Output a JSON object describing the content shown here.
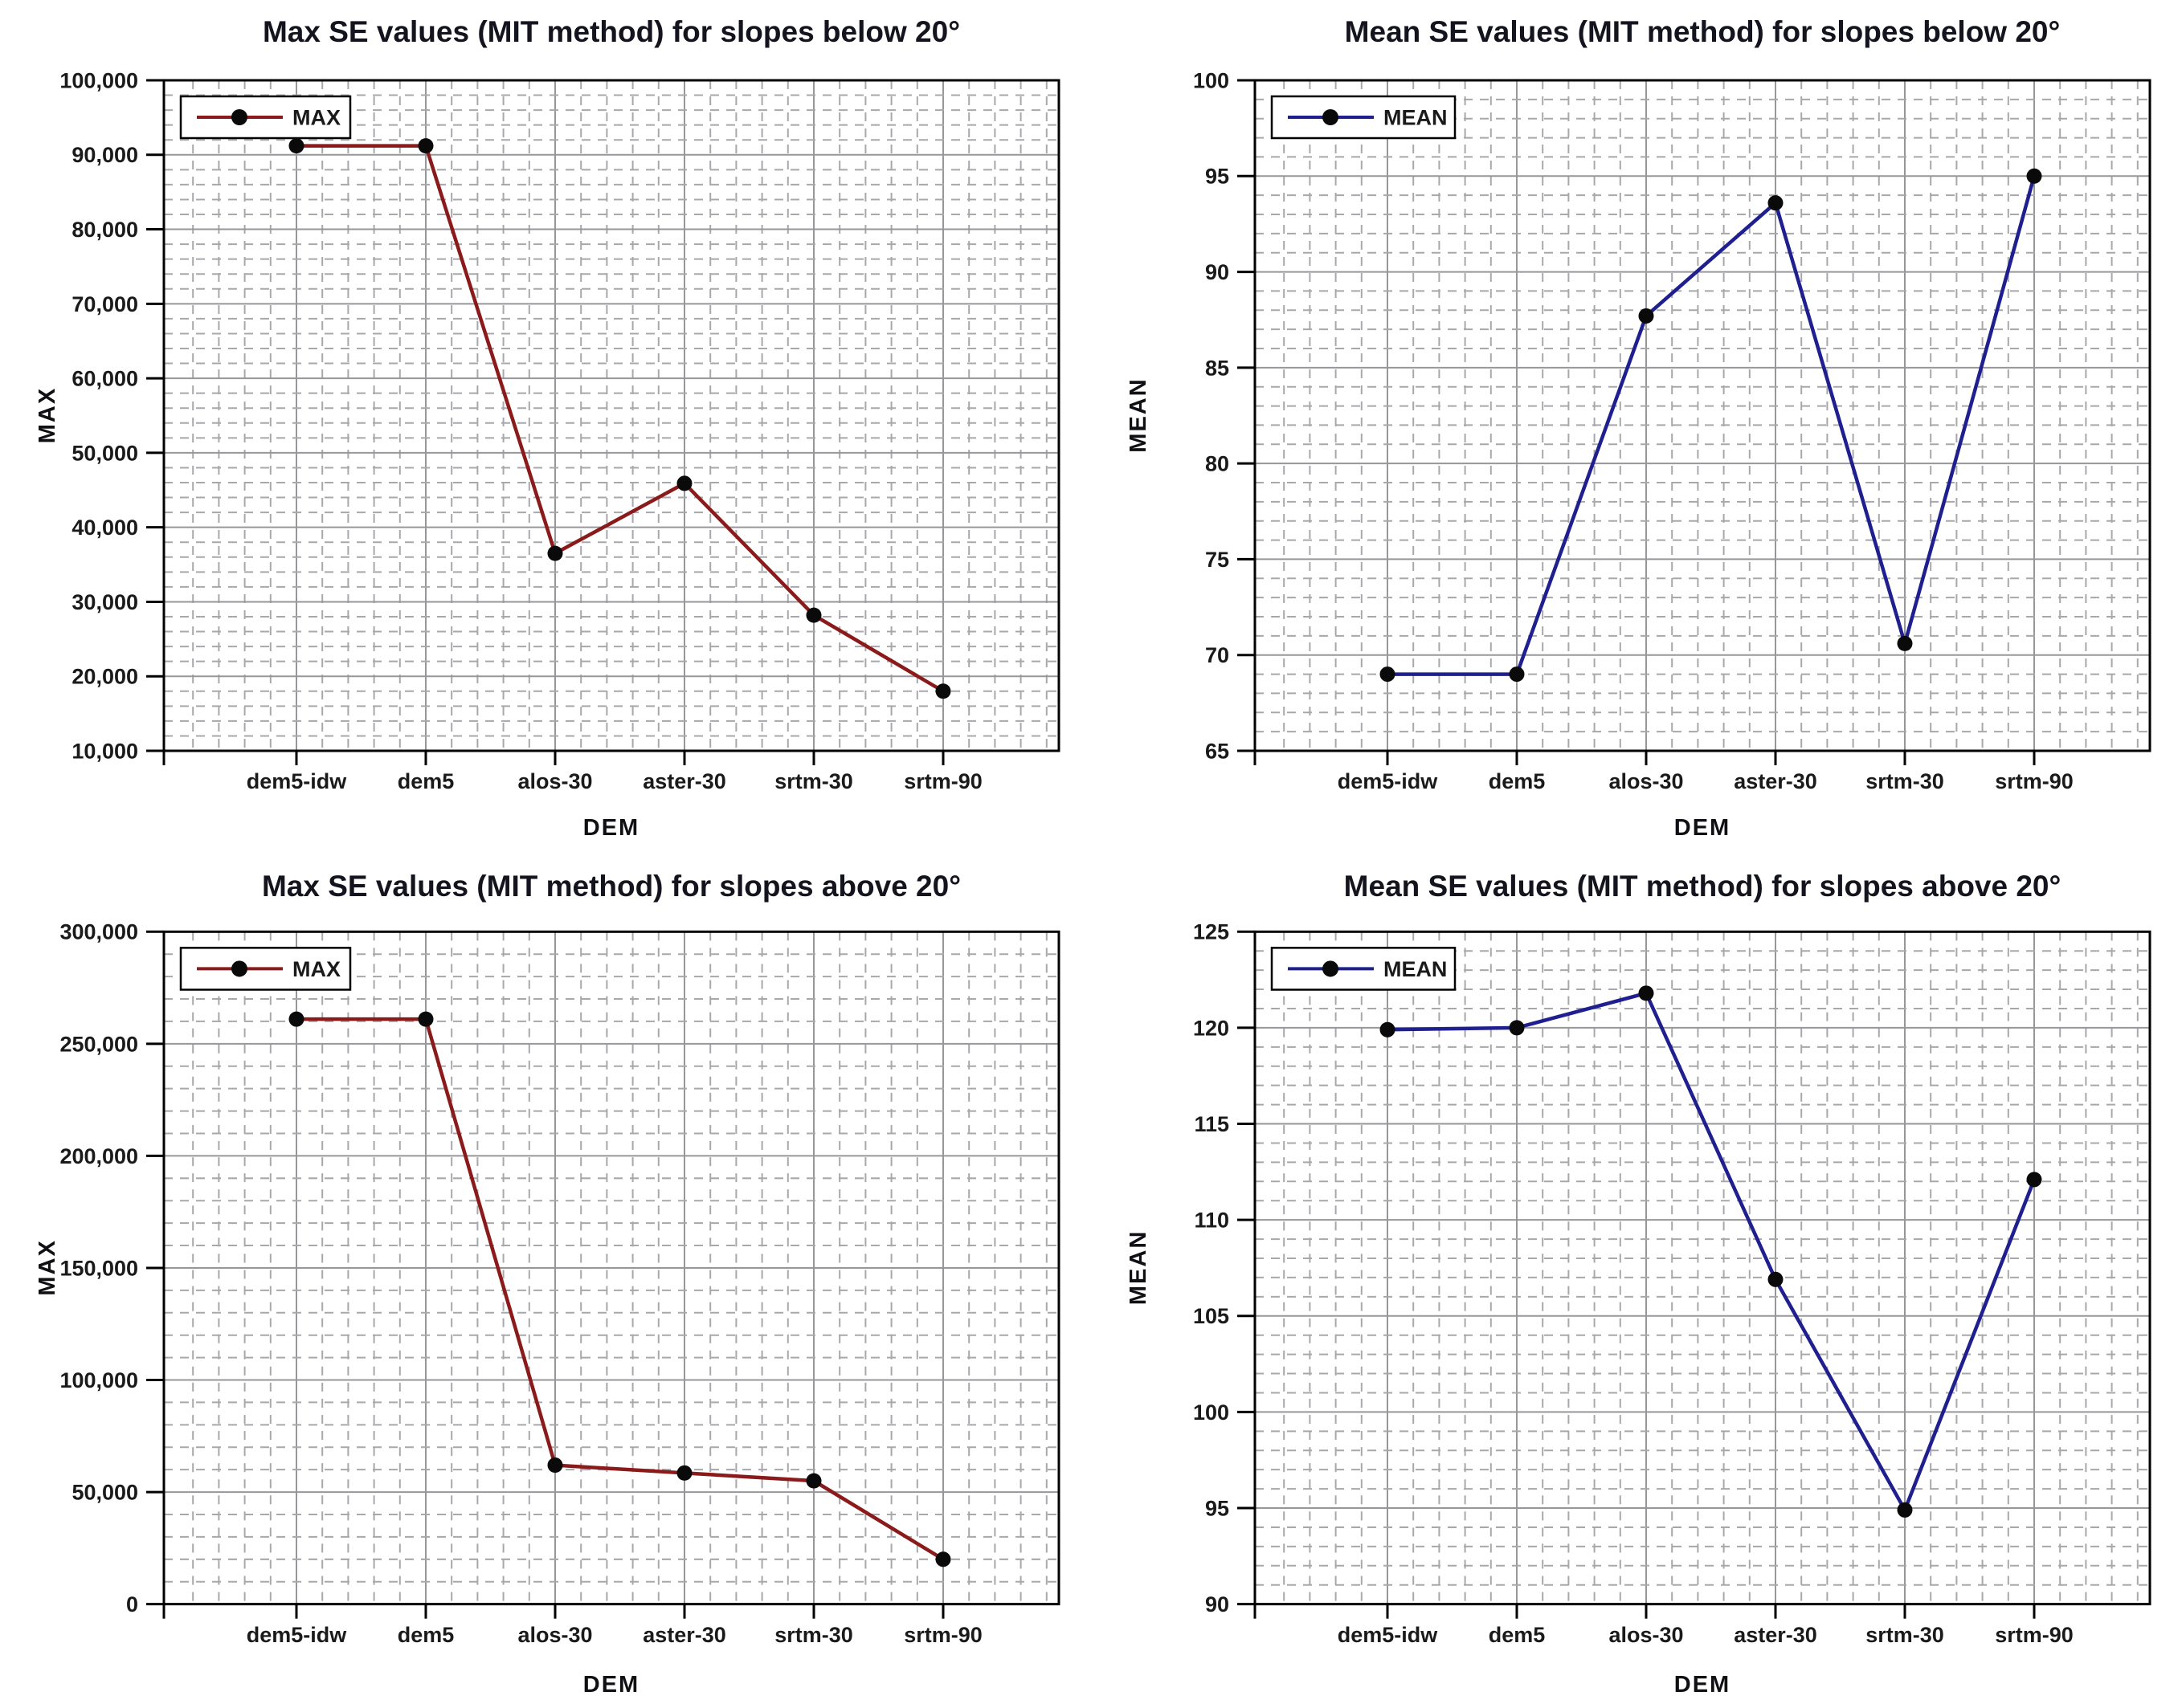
{
  "page": {
    "background": "#ffffff",
    "layout": "2x2 grid of line charts"
  },
  "style": {
    "max_line_color": "#8b1a1a",
    "mean_line_color": "#1f1f8f",
    "marker_color": "#0a0a0a",
    "major_grid_color": "#97979b",
    "minor_grid_color": "#a8a8ac",
    "axis_color": "#000000",
    "title_color": "#14141e"
  },
  "chart_data": [
    {
      "type": "line",
      "title": "Max SE values (MIT method) for slopes below 20°",
      "xlabel": "DEM",
      "ylabel": "MAX",
      "categories": [
        "dem5-idw",
        "dem5",
        "alos-30",
        "aster-30",
        "srtm-30",
        "srtm-90"
      ],
      "series": [
        {
          "name": "MAX",
          "color": "#8b1a1a",
          "values": [
            91200,
            91200,
            36500,
            45900,
            28200,
            18000
          ]
        }
      ],
      "ylim": [
        10000,
        100000
      ],
      "ytick": 10000,
      "minor_per_major": 5,
      "y_format": "comma",
      "grid": "major solid + minor dashed",
      "legend_position": "top-left",
      "legend_label": "MAX"
    },
    {
      "type": "line",
      "title": "Mean SE values (MIT method) for slopes below 20°",
      "xlabel": "DEM",
      "ylabel": "MEAN",
      "categories": [
        "dem5-idw",
        "dem5",
        "alos-30",
        "aster-30",
        "srtm-30",
        "srtm-90"
      ],
      "series": [
        {
          "name": "MEAN",
          "color": "#1f1f8f",
          "values": [
            69,
            69,
            87.7,
            93.6,
            70.6,
            95
          ]
        }
      ],
      "ylim": [
        65,
        100
      ],
      "ytick": 5,
      "minor_per_major": 5,
      "y_format": "plain",
      "grid": "major solid + minor dashed",
      "legend_position": "top-left",
      "legend_label": "MEAN"
    },
    {
      "type": "line",
      "title": "Max SE values (MIT method) for slopes above 20°",
      "xlabel": "DEM",
      "ylabel": "MAX",
      "categories": [
        "dem5-idw",
        "dem5",
        "alos-30",
        "aster-30",
        "srtm-30",
        "srtm-90"
      ],
      "series": [
        {
          "name": "MAX",
          "color": "#8b1a1a",
          "values": [
            261000,
            261000,
            62000,
            58500,
            55000,
            20000
          ]
        }
      ],
      "ylim": [
        0,
        300000
      ],
      "ytick": 50000,
      "minor_per_major": 5,
      "y_format": "comma",
      "grid": "major solid + minor dashed",
      "legend_position": "top-left",
      "legend_label": "MAX"
    },
    {
      "type": "line",
      "title": "Mean SE values (MIT method) for slopes above 20°",
      "xlabel": "DEM",
      "ylabel": "MEAN",
      "categories": [
        "dem5-idw",
        "dem5",
        "alos-30",
        "aster-30",
        "srtm-30",
        "srtm-90"
      ],
      "series": [
        {
          "name": "MEAN",
          "color": "#1f1f8f",
          "values": [
            119.9,
            120,
            121.8,
            106.9,
            94.9,
            112.1
          ]
        }
      ],
      "ylim": [
        90,
        125
      ],
      "ytick": 5,
      "minor_per_major": 5,
      "y_format": "plain",
      "grid": "major solid + minor dashed",
      "legend_position": "top-left",
      "legend_label": "MEAN"
    }
  ]
}
